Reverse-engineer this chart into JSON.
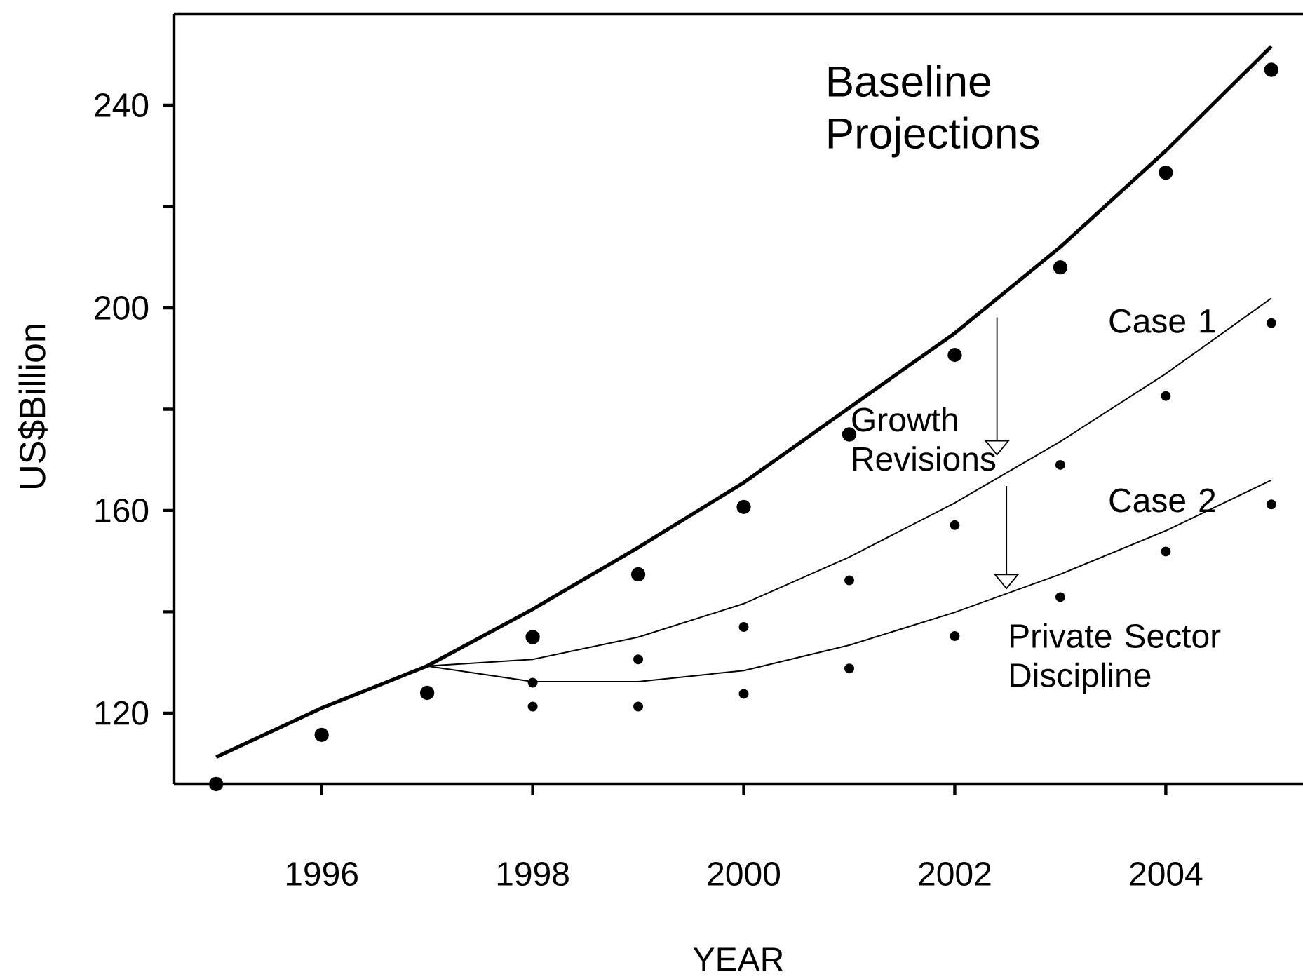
{
  "chart_data": {
    "type": "line",
    "xlabel": "YEAR",
    "ylabel": "US$Billion",
    "xlim": [
      1994.6,
      2005.3
    ],
    "ylim": [
      106,
      258
    ],
    "xticks": [
      1996,
      1998,
      2000,
      2002,
      2004
    ],
    "yticks": [
      120,
      {
        "value": 140,
        "label": null
      },
      160,
      {
        "value": 180,
        "label": null
      },
      200,
      {
        "value": 220,
        "label": null
      },
      240
    ],
    "annotations": [
      "Growth Revisions",
      "Private Sector Discipline"
    ],
    "series": [
      {
        "name": "Baseline Projections",
        "type": "line",
        "marker": "none",
        "color": "#000000",
        "x": [
          1995,
          1996,
          1997,
          1998,
          1999,
          2000,
          2001,
          2002,
          2003,
          2004,
          2005
        ],
        "values": [
          111.3,
          121,
          129.3,
          140.5,
          152.7,
          165.5,
          180.3,
          195,
          212,
          231,
          251.6
        ]
      },
      {
        "type": "scatter",
        "marker": "circle",
        "color": "#000000",
        "x": [
          1995,
          1996,
          1997,
          1998,
          1999,
          2000,
          2001,
          2002,
          2003,
          2004,
          2005
        ],
        "values": [
          106,
          115.7,
          124,
          135,
          147.4,
          160.7,
          175,
          190.7,
          208,
          226.7,
          247
        ]
      },
      {
        "name": "Case 1",
        "type": "line",
        "marker": "none",
        "color": "#000000",
        "x": [
          1997,
          1998,
          1999,
          2000,
          2001,
          2002,
          2003,
          2004,
          2005
        ],
        "values": [
          129.3,
          130.6,
          135,
          141.6,
          150.8,
          161.5,
          173.6,
          187,
          201.9
        ]
      },
      {
        "type": "scatter",
        "marker": "circle",
        "color": "#000000",
        "x": [
          1998,
          1999,
          2000,
          2001,
          2002,
          2003,
          2004,
          2005
        ],
        "values": [
          126,
          130.6,
          137,
          146.2,
          157.1,
          169,
          182.6,
          197
        ]
      },
      {
        "name": "Case 2",
        "type": "line",
        "marker": "none",
        "color": "#000000",
        "x": [
          1997,
          1998,
          1999,
          2000,
          2001,
          2002,
          2003,
          2004,
          2005
        ],
        "values": [
          129.3,
          126.2,
          126.2,
          128.4,
          133.4,
          139.9,
          147.4,
          156,
          166
        ]
      },
      {
        "type": "scatter",
        "marker": "circle",
        "color": "#000000",
        "x": [
          1998,
          1999,
          2000,
          2001,
          2002,
          2003,
          2004,
          2005
        ],
        "values": [
          121.3,
          121.3,
          123.8,
          128.8,
          135.2,
          142.9,
          151.9,
          161.2
        ]
      }
    ]
  }
}
